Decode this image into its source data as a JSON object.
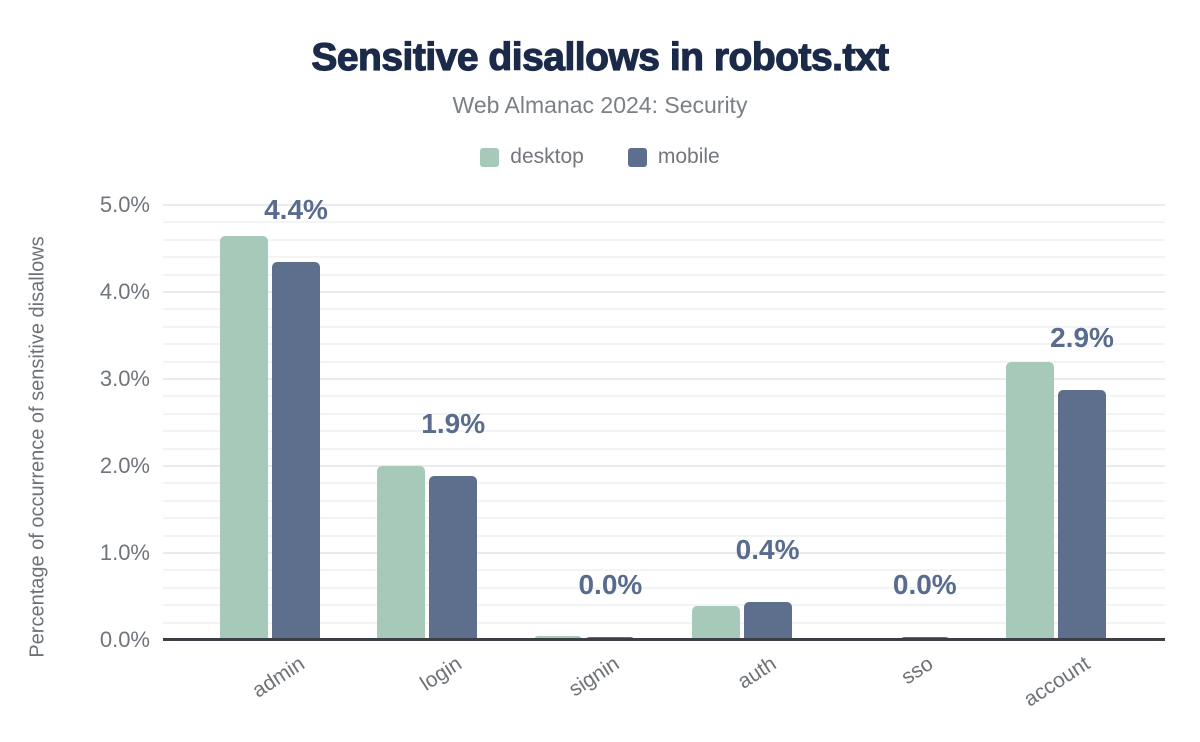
{
  "header": {
    "title": "Sensitive disallows in robots.txt",
    "subtitle": "Web Almanac 2024: Security"
  },
  "legend": [
    {
      "label": "desktop",
      "color": "#a7c9b9"
    },
    {
      "label": "mobile",
      "color": "#5e6f8d"
    }
  ],
  "colors": {
    "title_text": "#1b2a49",
    "subtitle_text": "#7b8087",
    "value_label_text": "#5a6c8e",
    "axis_text": "#70757c",
    "axis_line": "#3b4046",
    "grid_minor": "#f3f4f6",
    "grid_major": "#e9ebee",
    "desktop_bar": "#a7c9b9",
    "mobile_bar": "#5e6f8d"
  },
  "chart_data": {
    "type": "bar",
    "title": "Sensitive disallows in robots.txt",
    "subtitle": "Web Almanac 2024: Security",
    "categories": [
      "admin",
      "login",
      "signin",
      "auth",
      "sso",
      "account"
    ],
    "series": [
      {
        "name": "desktop",
        "color": "#a7c9b9",
        "values": [
          4.64,
          2.0,
          0.05,
          0.39,
          0.02,
          3.2
        ]
      },
      {
        "name": "mobile",
        "color": "#5e6f8d",
        "values": [
          4.35,
          1.88,
          0.03,
          0.44,
          0.03,
          2.87
        ]
      }
    ],
    "value_labels": [
      "4.4%",
      "1.9%",
      "0.0%",
      "0.4%",
      "0.0%",
      "2.9%"
    ],
    "value_labels_series": "mobile",
    "xlabel": "",
    "ylabel": "Percentage of occurrence of sensitive disallows",
    "yticks": [
      "0.0%",
      "1.0%",
      "2.0%",
      "3.0%",
      "4.0%",
      "5.0%"
    ],
    "ylim": [
      0,
      5
    ],
    "grid": "horizontal minor lines every 0.2%, major every 1.0%",
    "legend_position": "top center"
  }
}
